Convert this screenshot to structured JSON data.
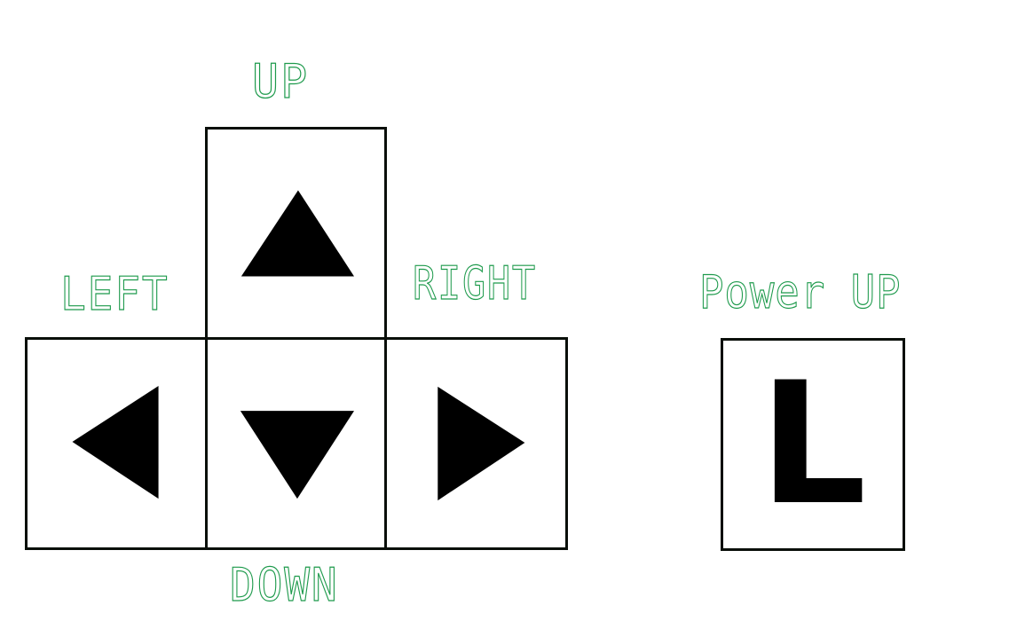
{
  "controls": {
    "up": {
      "label": "UP",
      "icon": "arrow-up-icon"
    },
    "left": {
      "label": "LEFT",
      "icon": "arrow-left-icon"
    },
    "down": {
      "label": "DOWN",
      "icon": "arrow-down-icon"
    },
    "right": {
      "label": "RIGHT",
      "icon": "arrow-right-icon"
    },
    "power_up": {
      "label": "Power UP",
      "key": "L"
    }
  },
  "colors": {
    "label_outline": "#1e9a4c",
    "key_border": "#0a0f0a",
    "arrow_fill": "#000000",
    "background": "#ffffff"
  }
}
